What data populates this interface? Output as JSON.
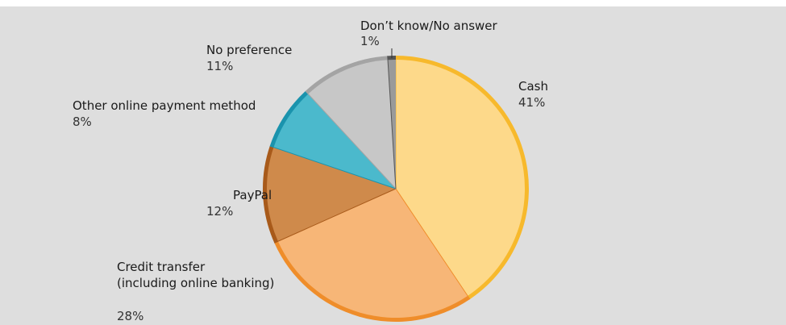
{
  "chart_data": {
    "type": "pie",
    "title": "",
    "start_angle_deg": 0,
    "direction": "clockwise",
    "slices": [
      {
        "label_lines": [
          "Cash"
        ],
        "value": 41,
        "value_label": "41%",
        "fill": "#fdd98a",
        "rim": "#f7b92c",
        "label_anchor": "start"
      },
      {
        "label_lines": [
          "Credit transfer",
          "(including online banking)"
        ],
        "value": 28,
        "value_label": "28%",
        "fill": "#f7b677",
        "rim": "#ef8d2a",
        "label_anchor": "start"
      },
      {
        "label_lines": [
          "PayPal"
        ],
        "value": 12,
        "value_label": "12%",
        "fill": "#cf8a4b",
        "rim": "#a85a1a",
        "label_anchor": "end"
      },
      {
        "label_lines": [
          "Other online payment method"
        ],
        "value": 8,
        "value_label": "8%",
        "fill": "#4bb9cc",
        "rim": "#1a93ad",
        "label_anchor": "start"
      },
      {
        "label_lines": [
          "No preference"
        ],
        "value": 11,
        "value_label": "11%",
        "fill": "#c7c7c7",
        "rim": "#a4a4a4",
        "label_anchor": "start"
      },
      {
        "label_lines": [
          "Don’t know/No answer"
        ],
        "value": 1,
        "value_label": "1%",
        "fill": "#9a9a9a",
        "rim": "#555555",
        "label_anchor": "start"
      }
    ]
  }
}
